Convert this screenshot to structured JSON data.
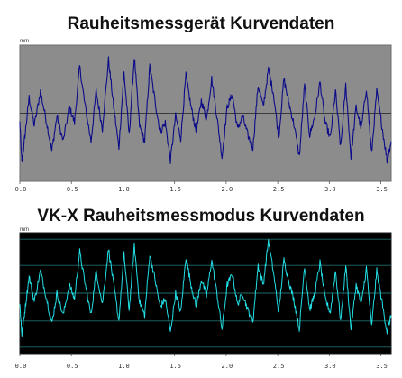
{
  "titles": {
    "top": "Rauheitsmessgerät Kurvendaten",
    "bottom": "VK-X Rauheitsmessmodus Kurvendaten"
  },
  "colors": {
    "panel1_bg": "#8c8c8c",
    "panel1_line": "#0b0b8a",
    "panel2_bg": "#000000",
    "panel2_line": "#22e0e6",
    "panel2_grid": "#1f6b6b"
  },
  "chart_data": [
    {
      "type": "line",
      "title": "Rauheitsmessgerät Kurvendaten",
      "unit_label": "mm",
      "xlim": [
        0,
        3.6
      ],
      "x_ticks": [
        "0.0",
        "0.5",
        "1.0",
        "1.5",
        "2.0",
        "2.5",
        "3.0",
        "3.5"
      ],
      "x_tick_values": [
        0,
        0.5,
        1.0,
        1.5,
        2.0,
        2.5,
        3.0,
        3.5
      ],
      "ylim": [
        -1,
        1
      ],
      "grid": "single centre line",
      "series": [
        {
          "x": [
            0,
            0.02,
            0.05,
            0.09,
            0.14,
            0.2,
            0.26,
            0.31,
            0.36,
            0.42,
            0.48,
            0.53,
            0.58,
            0.63,
            0.69,
            0.74,
            0.8,
            0.86,
            0.91,
            0.96,
            1.01,
            1.06,
            1.11,
            1.16,
            1.21,
            1.26,
            1.31,
            1.36,
            1.41,
            1.46,
            1.51,
            1.56,
            1.61,
            1.66,
            1.71,
            1.76,
            1.81,
            1.86,
            1.91,
            1.96,
            2.01,
            2.06,
            2.11,
            2.16,
            2.21,
            2.26,
            2.31,
            2.36,
            2.41,
            2.46,
            2.51,
            2.56,
            2.61,
            2.66,
            2.71,
            2.76,
            2.81,
            2.86,
            2.91,
            2.96,
            3.01,
            3.06,
            3.11,
            3.16,
            3.21,
            3.26,
            3.31,
            3.36,
            3.41,
            3.46,
            3.51,
            3.56,
            3.6
          ],
          "values": [
            -0.15,
            -0.8,
            -0.35,
            0.25,
            -0.2,
            0.35,
            -0.15,
            -0.6,
            -0.05,
            -0.45,
            0.1,
            -0.15,
            0.75,
            0.15,
            -0.45,
            0.35,
            -0.25,
            0.85,
            0.1,
            -0.55,
            0.65,
            -0.35,
            0.9,
            -0.2,
            -0.45,
            0.75,
            0.2,
            -0.3,
            -0.15,
            -0.75,
            -0.05,
            -0.4,
            0.6,
            0.1,
            -0.3,
            0.2,
            -0.1,
            0.55,
            -0.05,
            -0.7,
            0.1,
            0.3,
            -0.25,
            -0.05,
            -0.35,
            -0.55,
            0.45,
            0.1,
            0.7,
            0.3,
            -0.4,
            0.55,
            0.15,
            -0.2,
            -0.7,
            0.45,
            -0.35,
            -0.05,
            0.5,
            -0.15,
            -0.4,
            0.35,
            -0.55,
            0.45,
            -0.7,
            0.1,
            -0.25,
            0.4,
            -0.65,
            0.35,
            -0.2,
            -0.75,
            -0.45
          ]
        }
      ]
    },
    {
      "type": "line",
      "title": "VK-X Rauheitsmessmodus Kurvendaten",
      "unit_label": "mm",
      "xlim": [
        0,
        3.6
      ],
      "x_ticks": [
        "0.0",
        "0.5",
        "1.0",
        "1.5",
        "2.0",
        "2.5",
        "3.0",
        "3.5"
      ],
      "x_tick_values": [
        0,
        0.5,
        1.0,
        1.5,
        2.0,
        2.5,
        3.0,
        3.5
      ],
      "ylim": [
        -1,
        1
      ],
      "grid": "horizontal lines",
      "series": [
        {
          "x": [
            0,
            0.02,
            0.05,
            0.09,
            0.14,
            0.2,
            0.26,
            0.31,
            0.36,
            0.42,
            0.48,
            0.53,
            0.58,
            0.63,
            0.69,
            0.74,
            0.8,
            0.86,
            0.91,
            0.96,
            1.01,
            1.06,
            1.11,
            1.16,
            1.21,
            1.26,
            1.31,
            1.36,
            1.41,
            1.46,
            1.51,
            1.56,
            1.61,
            1.66,
            1.71,
            1.76,
            1.81,
            1.86,
            1.91,
            1.96,
            2.01,
            2.06,
            2.11,
            2.16,
            2.21,
            2.26,
            2.31,
            2.36,
            2.41,
            2.46,
            2.51,
            2.56,
            2.61,
            2.66,
            2.71,
            2.76,
            2.81,
            2.86,
            2.91,
            2.96,
            3.01,
            3.06,
            3.11,
            3.16,
            3.21,
            3.26,
            3.31,
            3.36,
            3.41,
            3.46,
            3.51,
            3.56,
            3.6
          ],
          "values": [
            -0.2,
            -0.75,
            -0.3,
            0.3,
            -0.15,
            0.4,
            -0.1,
            -0.55,
            0.0,
            -0.4,
            0.15,
            -0.1,
            0.75,
            0.2,
            -0.4,
            0.4,
            -0.2,
            0.8,
            0.15,
            -0.5,
            0.7,
            -0.3,
            0.85,
            -0.15,
            -0.4,
            0.7,
            0.25,
            -0.25,
            -0.1,
            -0.7,
            0.0,
            -0.35,
            0.65,
            0.15,
            -0.25,
            0.25,
            -0.05,
            0.6,
            0.0,
            -0.65,
            0.15,
            0.35,
            -0.2,
            0.0,
            -0.3,
            -0.5,
            0.5,
            0.15,
            0.95,
            0.35,
            -0.35,
            0.6,
            0.2,
            -0.15,
            -0.65,
            0.5,
            -0.3,
            0.0,
            0.55,
            -0.1,
            -0.35,
            0.4,
            -0.5,
            0.5,
            -0.65,
            0.15,
            -0.2,
            0.45,
            -0.6,
            0.4,
            -0.15,
            -0.7,
            -0.4
          ]
        }
      ]
    }
  ]
}
